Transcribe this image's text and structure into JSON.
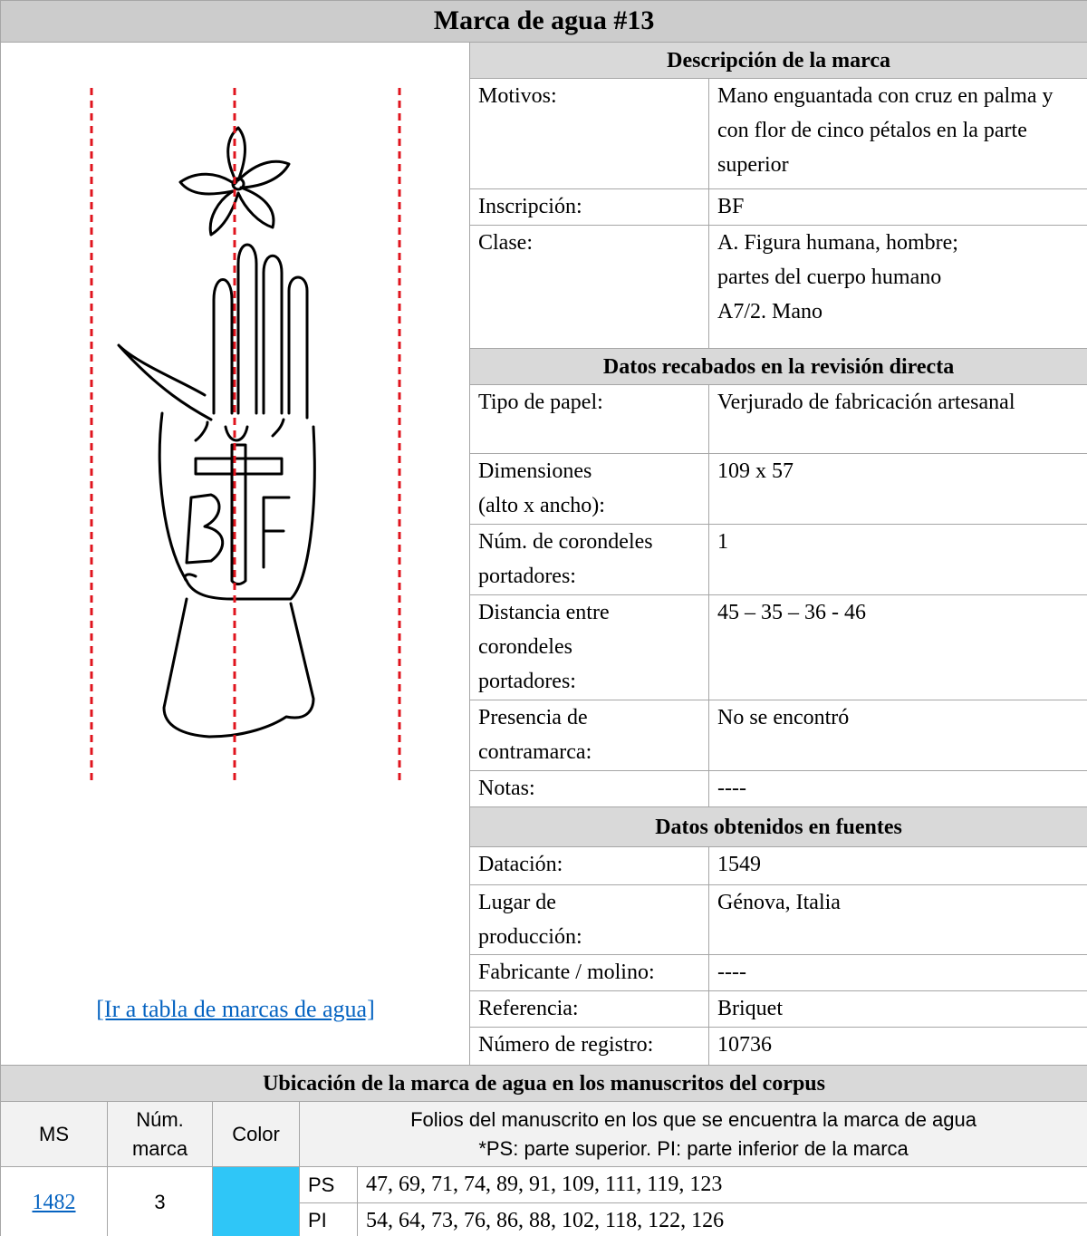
{
  "header": {
    "title": "Marca de agua #13"
  },
  "link": "[Ir a tabla de marcas de agua]",
  "sections": [
    {
      "title": "Descripción de la marca",
      "rows": [
        {
          "label": [
            "Motivos:"
          ],
          "value": [
            "Mano enguantada con cruz en palma y con flor de cinco pétalos en la parte superior"
          ]
        },
        {
          "label": [
            "Inscripción:"
          ],
          "value": [
            "BF"
          ]
        },
        {
          "label": [
            "Clase:"
          ],
          "value": [
            "A. Figura humana, hombre;",
            "partes del cuerpo humano",
            "A7/2. Mano"
          ]
        }
      ]
    },
    {
      "title": "Datos recabados en la revisión directa",
      "rows": [
        {
          "label": [
            "Tipo de papel:"
          ],
          "value": [
            "Verjurado de fabricación artesanal"
          ]
        },
        {
          "label": [
            "Dimensiones",
            "(alto x ancho):"
          ],
          "value": [
            "109 x 57"
          ]
        },
        {
          "label": [
            "Núm. de corondeles portadores:"
          ],
          "value": [
            "1"
          ]
        },
        {
          "label": [
            "Distancia entre",
            "corondeles",
            "portadores:"
          ],
          "value": [
            "45 – 35 – 36 - 46"
          ]
        },
        {
          "label": [
            "Presencia de",
            "contramarca:"
          ],
          "value": [
            "No se encontró"
          ]
        },
        {
          "label": [
            "Notas:"
          ],
          "value": [
            "----"
          ]
        }
      ]
    },
    {
      "title": "Datos obtenidos en fuentes",
      "rows": [
        {
          "label": [
            "Datación:"
          ],
          "value": [
            "1549"
          ]
        },
        {
          "label": [
            "Lugar de",
            "producción:"
          ],
          "value": [
            "Génova, Italia"
          ]
        },
        {
          "label": [
            "Fabricante / molino:"
          ],
          "value": [
            "----"
          ]
        },
        {
          "label": [
            "Referencia:"
          ],
          "value": [
            "Briquet"
          ]
        },
        {
          "label": [
            "Número de registro:"
          ],
          "value": [
            "10736"
          ]
        }
      ]
    }
  ],
  "location": {
    "title": "Ubicación de la marca de agua en los manuscritos del corpus",
    "columns": {
      "ms": "MS",
      "mark": [
        "Núm.",
        "marca"
      ],
      "color": "Color",
      "folios": [
        "Folios del manuscrito en los que se encuentra la marca de agua",
        "*PS: parte superior. PI: parte inferior de la marca"
      ]
    },
    "rows": [
      {
        "ms": "1482",
        "mark": "3",
        "color": "#2fc6f7",
        "parts": [
          {
            "part": "PS",
            "folios": "47, 69, 71, 74, 89, 91, 109, 111, 119, 123"
          },
          {
            "part": "PI",
            "folios": "54, 64, 73, 76, 86, 88, 102, 118, 122, 126"
          }
        ]
      }
    ]
  }
}
